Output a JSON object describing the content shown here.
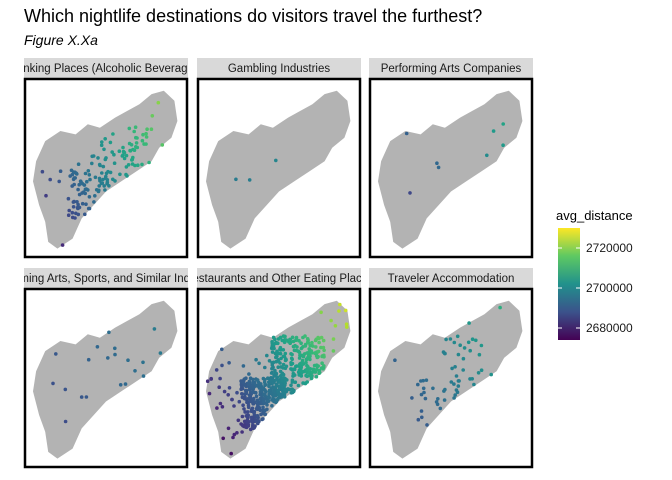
{
  "title": "Which nightlife destinations do visitors travel the furthest?",
  "subtitle": "Figure X.Xa",
  "chart_data": {
    "type": "scatter",
    "subtype": "faceted choropleth point map",
    "facets": [
      {
        "label": "Drinking Places (Alcoholic Beverages)",
        "n_points": 150,
        "avg_distance_range": [
          2680000,
          2725000
        ]
      },
      {
        "label": "Gambling Industries",
        "n_points": 3,
        "avg_distance_range": [
          2695000,
          2705000
        ]
      },
      {
        "label": "Performing Arts Companies",
        "n_points": 8,
        "avg_distance_range": [
          2680000,
          2712000
        ]
      },
      {
        "label": "Performing Arts, Sports, and Similar Industries",
        "n_points": 20,
        "avg_distance_range": [
          2685000,
          2700000
        ]
      },
      {
        "label": "Restaurants and Other Eating Places",
        "n_points": 600,
        "avg_distance_range": [
          2676000,
          2728000
        ]
      },
      {
        "label": "Traveler Accommodation",
        "n_points": 60,
        "avg_distance_range": [
          2685000,
          2712000
        ]
      }
    ],
    "legend": {
      "title": "avg_distance",
      "breaks": [
        2680000,
        2700000,
        2720000
      ],
      "break_labels": [
        "2680000",
        "2700000",
        "2720000"
      ],
      "range": [
        2674000,
        2730000
      ],
      "palette": "viridis",
      "placement": "right"
    },
    "map_fill": "#b3b3b3",
    "panel_border": "#000000",
    "strip_fill": "#d9d9d9",
    "grid": false
  }
}
